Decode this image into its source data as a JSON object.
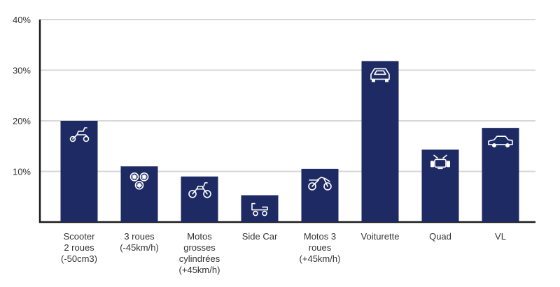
{
  "chart_data": {
    "type": "bar",
    "categories": [
      [
        "Scooter",
        "2 roues",
        "(-50cm3)"
      ],
      [
        "3 roues",
        "(-45km/h)"
      ],
      [
        "Motos",
        "grosses",
        "cylindrées",
        "(+45km/h)"
      ],
      [
        "Side Car"
      ],
      [
        "Motos 3",
        "roues",
        "(+45km/h)"
      ],
      [
        "Voiturette"
      ],
      [
        "Quad"
      ],
      [
        "VL"
      ]
    ],
    "values": [
      20,
      11,
      9,
      5.3,
      10.5,
      31.8,
      14.3,
      18.6
    ],
    "icons": [
      "scooter-icon",
      "three-wheels-icon",
      "motorcycle-icon",
      "sidecar-icon",
      "trike-icon",
      "voiturette-icon",
      "quad-icon",
      "car-icon"
    ],
    "yticks": [
      "10%",
      "20%",
      "30%",
      "40%"
    ],
    "ylim": [
      0,
      40
    ],
    "grid": true,
    "bar_color": "#1e2a63",
    "grid_color": "#d7d7d7"
  }
}
